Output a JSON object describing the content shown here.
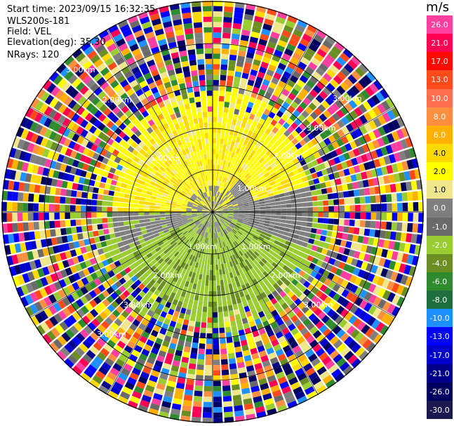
{
  "info": {
    "start_time": "Start time: 2023/09/15 16:32:35",
    "instrument": "WLS200s-181",
    "field": "Field: VEL",
    "elevation": "Elevation(deg): 35.30",
    "nrays": "NRays: 120"
  },
  "colorbar": {
    "unit": "m/s",
    "segments": [
      {
        "label": "26.0",
        "color": "#ff3fa0"
      },
      {
        "label": "21.0",
        "color": "#ff0055"
      },
      {
        "label": "17.0",
        "color": "#ff0a00"
      },
      {
        "label": "13.0",
        "color": "#ff4a1a"
      },
      {
        "label": "10.0",
        "color": "#ff6e4e"
      },
      {
        "label": "8.0",
        "color": "#ff8f40"
      },
      {
        "label": "6.0",
        "color": "#ffb000"
      },
      {
        "label": "4.0",
        "color": "#ffd900"
      },
      {
        "label": "2.0",
        "color": "#ffff00"
      },
      {
        "label": "1.0",
        "color": "#f0e68c"
      },
      {
        "label": "0.0",
        "color": "#7f7f7f"
      },
      {
        "label": "-1.0",
        "color": "#6a6a6a"
      },
      {
        "label": "-2.0",
        "color": "#9acd32"
      },
      {
        "label": "-4.0",
        "color": "#6b8e23"
      },
      {
        "label": "-6.0",
        "color": "#2e8b2e"
      },
      {
        "label": "-8.0",
        "color": "#1e6e3e"
      },
      {
        "label": "-10.0",
        "color": "#1e90ff"
      },
      {
        "label": "-13.0",
        "color": "#0000ff"
      },
      {
        "label": "-17.0",
        "color": "#0000cd"
      },
      {
        "label": "-21.0",
        "color": "#00008b"
      },
      {
        "label": "-26.0",
        "color": "#000060"
      },
      {
        "label": "-30.0",
        "color": "#1a1a50"
      }
    ]
  },
  "rings": {
    "inner_labels": [
      "1.00km",
      "1.00km",
      "1.00km",
      "1.00km"
    ],
    "mid_labels": [
      "2.00km",
      "2.00km",
      "2.00km",
      "2.00km"
    ],
    "outer_labels": [
      "3.00km",
      "3.00km",
      "3.00km",
      "3.00km",
      "3.00km",
      "3.00km"
    ]
  }
}
